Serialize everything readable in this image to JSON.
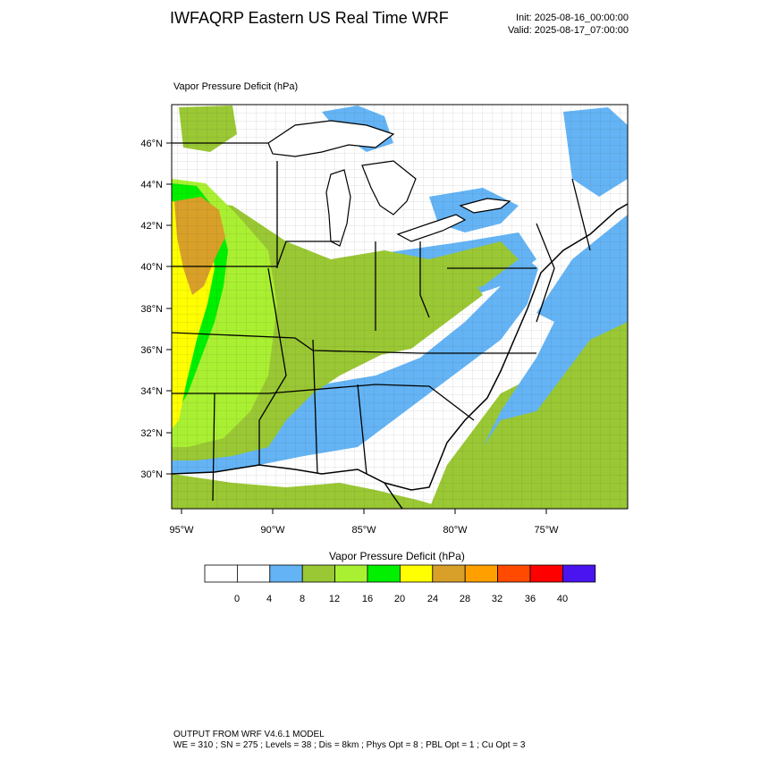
{
  "title": "IWFAQRP Eastern US Real Time WRF",
  "init": "Init: 2025-08-16_00:00:00",
  "valid": "Valid: 2025-08-17_07:00:00",
  "field_label": "Vapor Pressure Deficit   (hPa)",
  "map": {
    "lat_labels": [
      "46°N",
      "44°N",
      "42°N",
      "40°N",
      "38°N",
      "36°N",
      "34°N",
      "32°N",
      "30°N"
    ],
    "lon_labels": [
      "95°W",
      "90°W",
      "85°W",
      "80°W",
      "75°W"
    ]
  },
  "colorbar": {
    "title": "Vapor Pressure Deficit  (hPa)",
    "colors": [
      "#ffffff",
      "#ffffff",
      "#64b4f5",
      "#9ac834",
      "#aaf032",
      "#00f000",
      "#ffff00",
      "#d8a028",
      "#ffa000",
      "#ff4a00",
      "#ff0000",
      "#4a14f0"
    ],
    "labels": [
      "0",
      "4",
      "8",
      "12",
      "16",
      "20",
      "24",
      "28",
      "32",
      "36",
      "40"
    ]
  },
  "footer": {
    "line1": "OUTPUT FROM WRF V4.6.1 MODEL",
    "line2": "WE = 310 ; SN = 275 ; Levels = 38 ; Dis = 8km ; Phys Opt = 8 ; PBL Opt = 1 ; Cu Opt = 3"
  }
}
